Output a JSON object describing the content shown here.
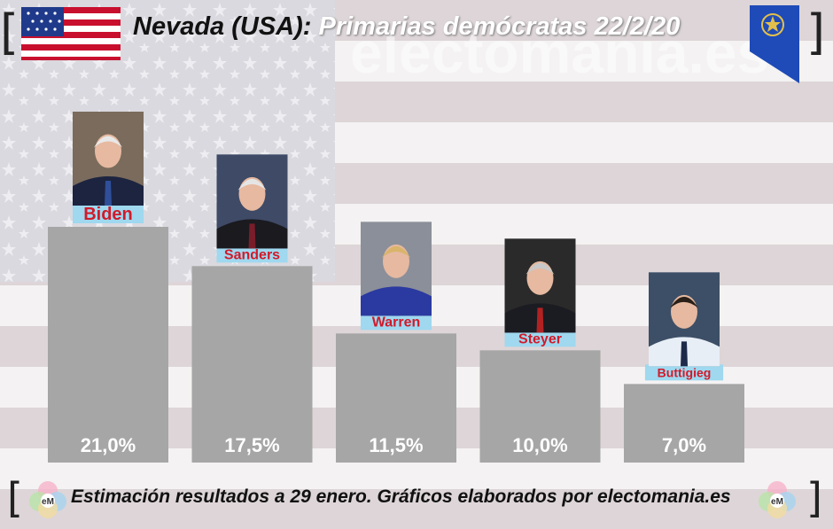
{
  "title": {
    "location": "Nevada (USA):",
    "event": "Primarias demócratas 22/2/20"
  },
  "watermark": "electomania.es",
  "footer": "Estimación resultados a 29 enero. Gráficos elaborados por electomania.es",
  "logo_text": "eM",
  "colors": {
    "bar": "#a6a6a6",
    "label_bg": "#9fd8ef",
    "label_text": "#d11a2a",
    "value_text": "#ffffff"
  },
  "chart_data": {
    "type": "bar",
    "categories": [
      "Biden",
      "Sanders",
      "Warren",
      "Steyer",
      "Buttigieg"
    ],
    "values": [
      21.0,
      17.5,
      11.5,
      10.0,
      7.0
    ],
    "value_labels": [
      "21,0%",
      "17,5%",
      "11,5%",
      "10,0%",
      "7,0%"
    ],
    "ylim": [
      0,
      30
    ]
  }
}
